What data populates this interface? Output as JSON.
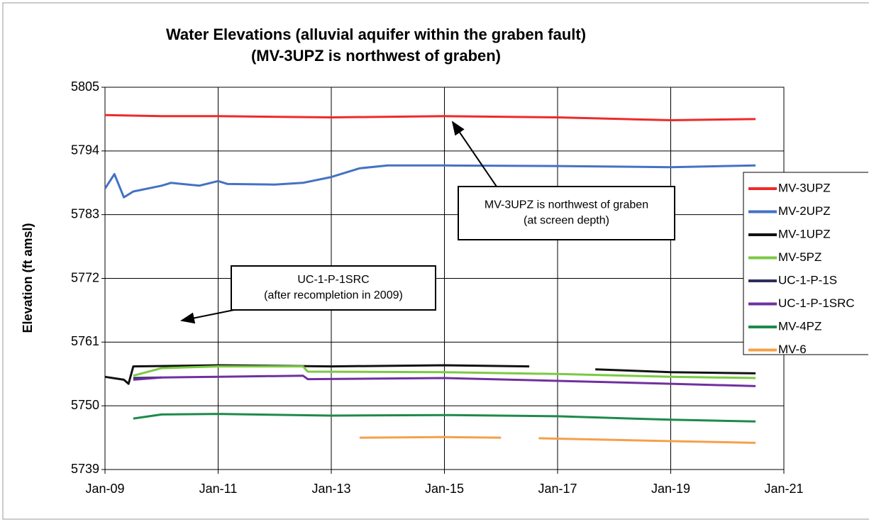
{
  "chart_data": {
    "type": "line",
    "title": [
      "Water Elevations (alluvial aquifer within the graben fault)",
      "(MV-3UPZ is northwest of graben)"
    ],
    "y_label": "Elevation (ft amsl)",
    "xlim": [
      "2009-01",
      "2021-01"
    ],
    "xticks": [
      {
        "value": "2009-01",
        "label": "Jan-09"
      },
      {
        "value": "2011-01",
        "label": "Jan-11"
      },
      {
        "value": "2013-01",
        "label": "Jan-13"
      },
      {
        "value": "2015-01",
        "label": "Jan-15"
      },
      {
        "value": "2017-01",
        "label": "Jan-17"
      },
      {
        "value": "2019-01",
        "label": "Jan-19"
      },
      {
        "value": "2021-01",
        "label": "Jan-21"
      }
    ],
    "ylim": [
      5739,
      5805
    ],
    "yticks": [
      5739,
      5750,
      5761,
      5772,
      5783,
      5794,
      5805
    ],
    "grid": true,
    "legend": "right",
    "series": [
      {
        "name": "MV-3UPZ",
        "color": "#ee2a2a",
        "x": [
          "2009-01",
          "2010-01",
          "2011-01",
          "2013-01",
          "2015-01",
          "2017-01",
          "2019-01",
          "2020-07"
        ],
        "values": [
          5800.2,
          5800.0,
          5800.0,
          5799.8,
          5800.0,
          5799.8,
          5799.3,
          5799.5
        ]
      },
      {
        "name": "MV-2UPZ",
        "color": "#4472c4",
        "x": [
          "2009-01",
          "2009-03",
          "2009-05",
          "2009-07",
          "2010-01",
          "2010-03",
          "2010-09",
          "2011-01",
          "2011-03",
          "2012-01",
          "2012-07",
          "2013-01",
          "2013-07",
          "2014-01",
          "2015-01",
          "2017-01",
          "2019-01",
          "2020-07"
        ],
        "values": [
          5787.5,
          5790,
          5786,
          5787,
          5788,
          5788.5,
          5788,
          5788.8,
          5788.3,
          5788.2,
          5788.5,
          5789.5,
          5791,
          5791.5,
          5791.5,
          5791.4,
          5791.2,
          5791.5
        ]
      },
      {
        "name": "MV-1UPZ",
        "color": "#111111",
        "x": [
          "2009-01",
          "2009-05",
          "2009-06",
          "2009-07",
          "2011-01",
          "2013-01",
          "2015-01",
          "2016-07",
          "2017-03",
          "2017-09",
          "2019-01",
          "2020-07"
        ],
        "values": [
          5755,
          5754.5,
          5753.8,
          5756.8,
          5757,
          5756.8,
          5757,
          5756.8,
          null,
          5756.3,
          5755.8,
          5755.6
        ]
      },
      {
        "name": "MV-5PZ",
        "color": "#7ac943",
        "x": [
          "2009-07",
          "2010-01",
          "2011-01",
          "2012-07",
          "2012-08",
          "2015-01",
          "2017-01",
          "2019-01",
          "2020-07"
        ],
        "values": [
          5755.2,
          5756.5,
          5756.8,
          5756.8,
          5755.9,
          5755.8,
          5755.5,
          5755,
          5754.8
        ]
      },
      {
        "name": "UC-1-P-1S",
        "color": "#2e2e5e",
        "x": [
          "2009-07",
          "2010-01"
        ],
        "values": [
          5754.8,
          5754.9
        ]
      },
      {
        "name": "UC-1-P-1SRC",
        "color": "#7030a0",
        "x": [
          "2009-07",
          "2010-01",
          "2011-01",
          "2012-07",
          "2012-08",
          "2015-01",
          "2017-01",
          "2019-01",
          "2020-07"
        ],
        "values": [
          5754.5,
          5754.9,
          5755,
          5755.2,
          5754.6,
          5754.8,
          5754.3,
          5753.8,
          5753.4
        ]
      },
      {
        "name": "MV-4PZ",
        "color": "#1e8a4a",
        "x": [
          "2009-07",
          "2010-01",
          "2011-01",
          "2013-01",
          "2015-01",
          "2017-01",
          "2019-01",
          "2020-07"
        ],
        "values": [
          5747.8,
          5748.5,
          5748.6,
          5748.3,
          5748.4,
          5748.2,
          5747.6,
          5747.3
        ]
      },
      {
        "name": "MV-6",
        "color": "#f5a04a",
        "x": [
          "2013-07",
          "2015-01",
          "2016-01",
          "2016-05",
          "2016-09",
          "2019-01",
          "2020-07"
        ],
        "values": [
          5744.5,
          5744.6,
          5744.5,
          null,
          5744.4,
          5743.9,
          5743.6
        ]
      }
    ],
    "annotations": [
      {
        "lines": [
          "MV-3UPZ is northwest of graben",
          "(at screen depth)"
        ]
      },
      {
        "lines": [
          "UC-1-P-1SRC",
          "(after recompletion in 2009)"
        ]
      }
    ]
  }
}
